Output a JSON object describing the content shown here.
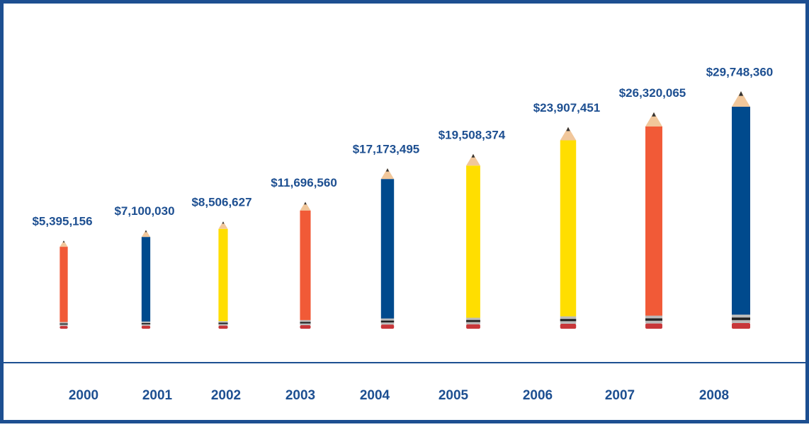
{
  "chart_data": {
    "type": "bar",
    "categories": [
      "2000",
      "2001",
      "2002",
      "2003",
      "2004",
      "2005",
      "2006",
      "2007",
      "2008"
    ],
    "values": [
      5395156,
      7100030,
      8506627,
      11696560,
      17173495,
      19508374,
      23907451,
      26320065,
      29748360
    ],
    "value_labels": [
      "$5,395,156",
      "$7,100,030",
      "$8,506,627",
      "$11,696,560",
      "$17,173,495",
      "$19,508,374",
      "$23,907,451",
      "$26,320,065",
      "$29,748,360"
    ],
    "colors": [
      "#f15a37",
      "#004a8d",
      "#ffde00",
      "#f15a37",
      "#004a8d",
      "#ffde00",
      "#ffde00",
      "#f15a37",
      "#004a8d"
    ]
  }
}
